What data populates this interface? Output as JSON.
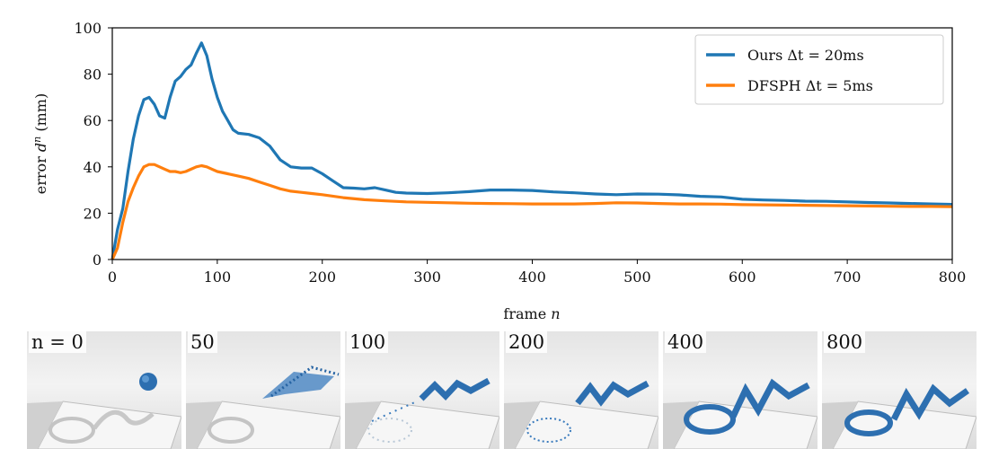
{
  "chart_data": {
    "type": "line",
    "xlabel": "frame n",
    "ylabel": "error d^n (mm)",
    "xlim": [
      0,
      800
    ],
    "ylim": [
      0,
      100
    ],
    "xticks": [
      0,
      100,
      200,
      300,
      400,
      500,
      600,
      700,
      800
    ],
    "yticks": [
      0,
      20,
      40,
      60,
      80,
      100
    ],
    "grid": false,
    "legend_position": "top-right",
    "series": [
      {
        "name": "Ours Δt = 20ms",
        "color": "#1f77b4",
        "x": [
          0,
          5,
          10,
          15,
          20,
          25,
          30,
          35,
          40,
          45,
          50,
          55,
          60,
          65,
          70,
          75,
          80,
          85,
          90,
          95,
          100,
          105,
          110,
          115,
          120,
          130,
          140,
          150,
          160,
          170,
          180,
          190,
          200,
          210,
          220,
          230,
          240,
          250,
          260,
          270,
          280,
          300,
          320,
          340,
          360,
          380,
          400,
          420,
          440,
          460,
          480,
          500,
          520,
          540,
          560,
          580,
          600,
          620,
          640,
          660,
          680,
          700,
          720,
          740,
          760,
          780,
          800
        ],
        "y": [
          0,
          13,
          22,
          38,
          52,
          62,
          69,
          70,
          67,
          62,
          61,
          70,
          77,
          79,
          82,
          84,
          89,
          93.5,
          88,
          78,
          70,
          64,
          60,
          56,
          54.5,
          54,
          52.5,
          49,
          43,
          40,
          39.5,
          39.5,
          37,
          34,
          31,
          30.8,
          30.5,
          31,
          30,
          29,
          28.7,
          28.5,
          28.8,
          29.3,
          30,
          30,
          29.8,
          29.2,
          28.8,
          28.3,
          28,
          28.3,
          28.2,
          27.9,
          27.3,
          27,
          26,
          25.7,
          25.5,
          25.2,
          25.1,
          24.9,
          24.6,
          24.4,
          24.2,
          24,
          23.8
        ]
      },
      {
        "name": "DFSPH Δt = 5ms",
        "color": "#ff7f0e",
        "x": [
          0,
          5,
          10,
          15,
          20,
          25,
          30,
          35,
          40,
          45,
          50,
          55,
          60,
          65,
          70,
          75,
          80,
          85,
          90,
          95,
          100,
          110,
          120,
          130,
          140,
          150,
          160,
          170,
          180,
          190,
          200,
          220,
          240,
          260,
          280,
          300,
          320,
          340,
          360,
          380,
          400,
          420,
          440,
          460,
          480,
          500,
          520,
          540,
          560,
          580,
          600,
          620,
          640,
          660,
          680,
          700,
          720,
          740,
          760,
          780,
          800
        ],
        "y": [
          0,
          5,
          16,
          25,
          31,
          36,
          40,
          41,
          41,
          40,
          39,
          38,
          38,
          37.5,
          38,
          39,
          40,
          40.5,
          40,
          39,
          38,
          37,
          36,
          35,
          33.5,
          32,
          30.5,
          29.5,
          29,
          28.5,
          28,
          26.7,
          25.8,
          25.3,
          24.9,
          24.7,
          24.5,
          24.3,
          24.2,
          24.1,
          24,
          24,
          24,
          24.2,
          24.5,
          24.4,
          24.2,
          24,
          24,
          23.9,
          23.7,
          23.6,
          23.5,
          23.4,
          23.3,
          23.2,
          23.1,
          23,
          22.9,
          22.9,
          22.8
        ]
      }
    ]
  },
  "axis_text": {
    "ylabel_prefix": "error ",
    "ylabel_var": "d",
    "ylabel_sup": "n",
    "ylabel_unit": " (mm)",
    "xlabel_prefix": "frame ",
    "xlabel_var": "n"
  },
  "legend": [
    {
      "text": "Ours Δt = 20ms",
      "color": "#1f77b4"
    },
    {
      "text": "DFSPH Δt = 5ms",
      "color": "#ff7f0e"
    }
  ],
  "snapshots": [
    {
      "label": "n = 0"
    },
    {
      "label": "50"
    },
    {
      "label": "100"
    },
    {
      "label": "200"
    },
    {
      "label": "400"
    },
    {
      "label": "800"
    }
  ]
}
